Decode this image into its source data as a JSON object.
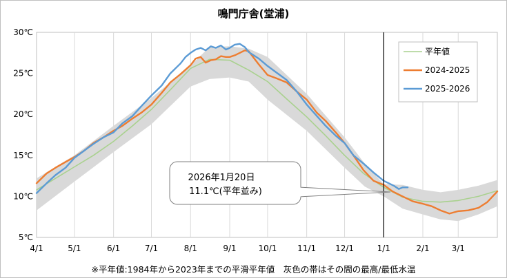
{
  "title": "鳴門庁舎(堂浦)",
  "footnote": "※平年値:1984年から2023年までの平滑平年値　灰色の帯はその間の最高/最低水温",
  "callout": {
    "line1": "2026年1月20日",
    "line2": "11.1℃(平年並み)"
  },
  "chart_data": {
    "type": "line",
    "title": "鳴門庁舎(堂浦)",
    "xlabel": "",
    "ylabel": "",
    "x_unit": "days since Apr 1",
    "xlim": [
      0,
      365
    ],
    "ylim": [
      5,
      30
    ],
    "y_ticks": [
      5,
      10,
      15,
      20,
      25,
      30
    ],
    "y_tick_labels": [
      "5℃",
      "10℃",
      "15℃",
      "20℃",
      "25℃",
      "30℃"
    ],
    "x_ticks": [
      0,
      30,
      61,
      91,
      122,
      153,
      183,
      214,
      244,
      275,
      306,
      334
    ],
    "x_tick_labels": [
      "4/1",
      "5/1",
      "6/1",
      "7/1",
      "8/1",
      "9/1",
      "10/1",
      "11/1",
      "12/1",
      "1/1",
      "2/1",
      "3/1"
    ],
    "grid": "vertical",
    "legend_position": "top-right",
    "marker_line_x": 275,
    "band": {
      "name": "最高/最低水温",
      "color": "#d9d9d9",
      "x": [
        0,
        30,
        61,
        91,
        122,
        137,
        153,
        168,
        183,
        214,
        244,
        260,
        275,
        290,
        306,
        320,
        334,
        350,
        365
      ],
      "high": [
        12.2,
        15.0,
        18.6,
        22.0,
        26.0,
        28.2,
        28.3,
        28.0,
        27.0,
        22.5,
        17.2,
        14.0,
        11.5,
        11.4,
        10.8,
        10.5,
        10.8,
        11.3,
        12.0
      ],
      "low": [
        8.3,
        11.8,
        15.4,
        18.8,
        23.4,
        24.3,
        24.5,
        24.0,
        21.8,
        18.0,
        13.5,
        11.2,
        10.0,
        8.5,
        7.8,
        7.2,
        7.0,
        7.8,
        8.8
      ]
    },
    "series": [
      {
        "name": "平年値",
        "color": "#a9d18e",
        "width": 1.6,
        "x": [
          0,
          15,
          30,
          45,
          61,
          76,
          91,
          106,
          122,
          137,
          153,
          168,
          183,
          198,
          214,
          229,
          244,
          259,
          275,
          290,
          306,
          320,
          334,
          350,
          365
        ],
        "y": [
          10.8,
          12.2,
          13.6,
          15.0,
          16.7,
          18.6,
          20.6,
          23.0,
          25.6,
          26.7,
          26.6,
          25.4,
          24.0,
          21.9,
          19.7,
          17.4,
          15.0,
          12.8,
          11.1,
          9.9,
          9.4,
          9.3,
          9.5,
          10.0,
          10.7
        ]
      },
      {
        "name": "2024-2025",
        "color": "#ed7d31",
        "width": 2.4,
        "x": [
          0,
          8,
          15,
          23,
          30,
          38,
          45,
          53,
          61,
          68,
          76,
          83,
          91,
          99,
          106,
          114,
          122,
          126,
          130,
          134,
          138,
          142,
          146,
          150,
          153,
          157,
          161,
          165,
          168,
          172,
          176,
          183,
          190,
          198,
          206,
          214,
          222,
          229,
          237,
          244,
          251,
          259,
          267,
          275,
          282,
          290,
          298,
          306,
          313,
          320,
          327,
          334,
          342,
          350,
          357,
          365
        ],
        "y": [
          11.6,
          12.8,
          13.5,
          14.2,
          14.8,
          15.6,
          16.5,
          17.2,
          18.0,
          18.6,
          19.5,
          20.2,
          21.2,
          22.6,
          23.9,
          24.9,
          26.0,
          26.8,
          27.0,
          26.3,
          26.6,
          26.7,
          27.1,
          27.0,
          27.0,
          27.2,
          27.5,
          27.8,
          27.7,
          26.9,
          26.1,
          24.8,
          24.4,
          23.9,
          22.8,
          21.8,
          20.2,
          19.2,
          17.8,
          16.5,
          15.0,
          13.2,
          11.9,
          11.4,
          10.6,
          10.0,
          9.4,
          9.1,
          8.8,
          8.3,
          7.9,
          8.2,
          8.3,
          8.6,
          9.3,
          10.6
        ]
      },
      {
        "name": "2025-2026",
        "color": "#5b9bd5",
        "width": 2.4,
        "x": [
          0,
          8,
          15,
          23,
          30,
          38,
          45,
          53,
          61,
          68,
          76,
          83,
          91,
          99,
          106,
          114,
          118,
          122,
          126,
          130,
          134,
          138,
          142,
          146,
          150,
          153,
          157,
          161,
          165,
          168,
          172,
          176,
          183,
          190,
          198,
          206,
          214,
          222,
          229,
          237,
          244,
          251,
          259,
          267,
          271,
          275,
          279,
          283,
          287,
          290,
          294
        ],
        "y": [
          10.4,
          11.6,
          12.6,
          13.5,
          14.7,
          15.6,
          16.4,
          17.2,
          17.8,
          18.9,
          19.8,
          21.0,
          22.3,
          23.5,
          25.0,
          26.2,
          27.0,
          27.5,
          27.9,
          28.1,
          27.8,
          28.3,
          28.1,
          28.4,
          27.9,
          28.1,
          28.5,
          28.6,
          28.2,
          27.6,
          27.2,
          26.8,
          25.9,
          25.1,
          24.2,
          22.8,
          21.2,
          19.8,
          18.6,
          17.4,
          16.5,
          15.0,
          14.0,
          12.9,
          12.4,
          11.9,
          11.6,
          11.3,
          10.9,
          11.1,
          11.1
        ]
      }
    ]
  }
}
